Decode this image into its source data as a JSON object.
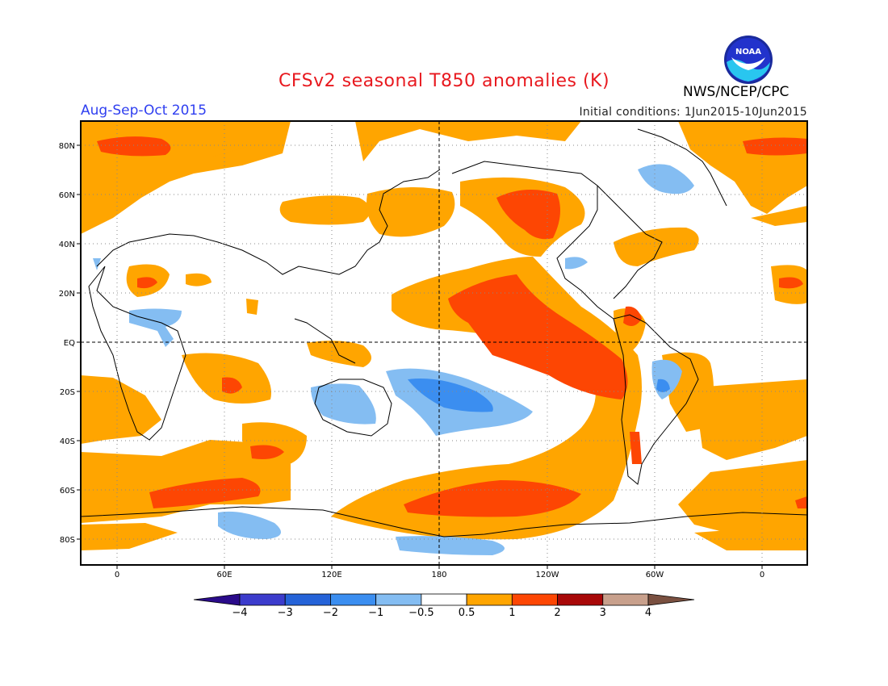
{
  "title": "CFSv2 seasonal T850 anomalies (K)",
  "season": "Aug-Sep-Oct 2015",
  "initial_conditions": "Initial conditions: 1Jun2015-10Jun2015",
  "agency": "NWS/NCEP/CPC",
  "logo_text": "NOAA",
  "lat_labels": [
    "80N",
    "60N",
    "40N",
    "20N",
    "EQ",
    "20S",
    "40S",
    "60S",
    "80S"
  ],
  "lon_labels": [
    "0",
    "60E",
    "120E",
    "180",
    "120W",
    "60W",
    "0"
  ],
  "colorbar": {
    "labels": [
      "−4",
      "−3",
      "−2",
      "−1",
      "−0.5",
      "0.5",
      "1",
      "2",
      "3",
      "4"
    ],
    "colors": [
      "#2a0b8a",
      "#3c3ccc",
      "#2563d8",
      "#3b8ef0",
      "#84bdf2",
      "#ffffff",
      "#ffa500",
      "#fd4603",
      "#a80808",
      "#c8a08c",
      "#7a5040"
    ]
  },
  "anomaly_colors": {
    "warm1": "#ffa500",
    "warm2": "#fd4603",
    "cool1": "#84bdf2",
    "cool2": "#3b8ef0"
  }
}
